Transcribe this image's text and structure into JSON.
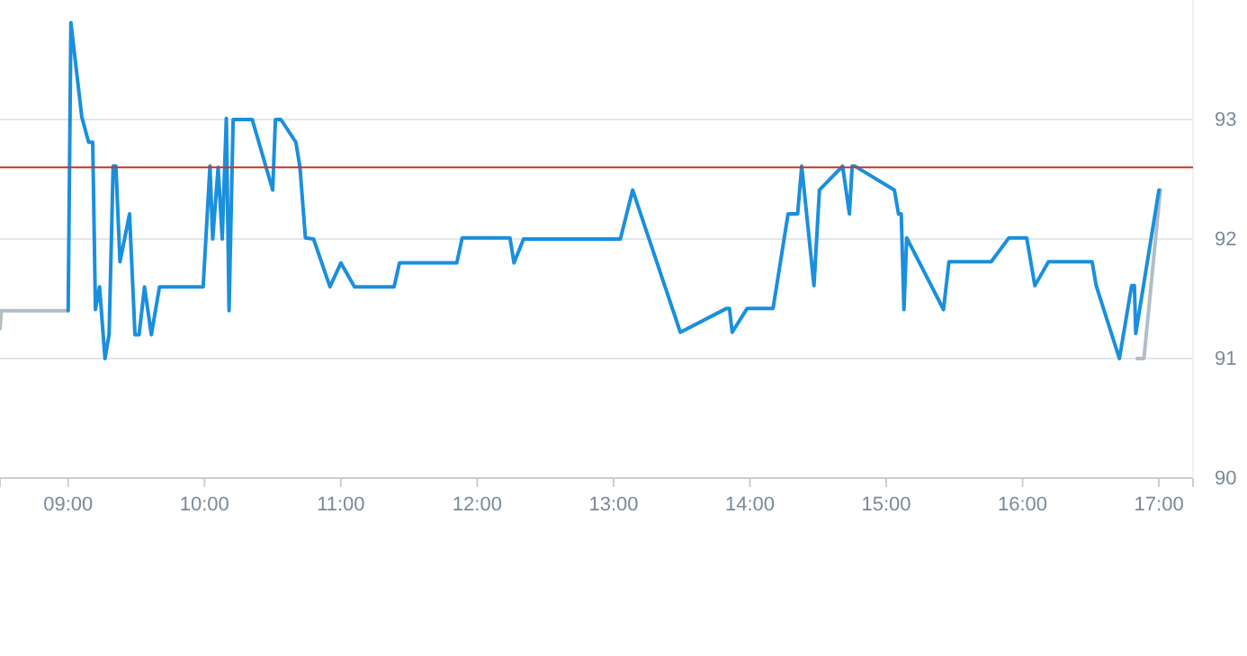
{
  "chart_data": {
    "type": "line",
    "xlim": [
      8.5,
      17.25
    ],
    "ylim": [
      90,
      94
    ],
    "xticks": [
      {
        "value": 9,
        "label": "09:00"
      },
      {
        "value": 10,
        "label": "10:00"
      },
      {
        "value": 11,
        "label": "11:00"
      },
      {
        "value": 12,
        "label": "12:00"
      },
      {
        "value": 13,
        "label": "13:00"
      },
      {
        "value": 14,
        "label": "14:00"
      },
      {
        "value": 15,
        "label": "15:00"
      },
      {
        "value": 16,
        "label": "16:00"
      },
      {
        "value": 17,
        "label": "17:00"
      }
    ],
    "yticks": [
      90,
      91,
      92,
      93
    ],
    "grid": "y",
    "marker": "none",
    "line_style": "solid",
    "ref_lines": [
      {
        "axis": "y",
        "value": 92.6,
        "label": null,
        "color": "#c0392b"
      }
    ],
    "series": [
      {
        "color": "#b0bec5",
        "x": [
          8.5,
          8.51,
          9.0
        ],
        "values": [
          91.25,
          91.4,
          91.4
        ]
      },
      {
        "color": "#b0bec5",
        "x": [
          16.84,
          16.89,
          17.01
        ],
        "values": [
          91.0,
          91.0,
          92.41
        ]
      },
      {
        "color": "#1a8fdd",
        "x": [
          9.0,
          9.02,
          9.1,
          9.15,
          9.18,
          9.2,
          9.23,
          9.27,
          9.3,
          9.33,
          9.35,
          9.38,
          9.45,
          9.49,
          9.52,
          9.56,
          9.61,
          9.67,
          9.99,
          10.04,
          10.06,
          10.1,
          10.13,
          10.16,
          10.18,
          10.21,
          10.35,
          10.5,
          10.52,
          10.56,
          10.67,
          10.7,
          10.74,
          10.8,
          10.92,
          11.0,
          11.1,
          11.39,
          11.43,
          11.85,
          11.89,
          12.24,
          12.27,
          12.34,
          13.05,
          13.14,
          13.49,
          13.83,
          13.85,
          13.87,
          13.98,
          14.17,
          14.28,
          14.35,
          14.38,
          14.47,
          14.51,
          14.68,
          14.73,
          14.75,
          14.77,
          15.06,
          15.09,
          15.11,
          15.13,
          15.15,
          15.42,
          15.46,
          15.77,
          15.9,
          16.03,
          16.09,
          16.19,
          16.51,
          16.54,
          16.71,
          16.8,
          16.82,
          16.83,
          17.0
        ],
        "values": [
          91.4,
          93.81,
          93.02,
          92.81,
          92.81,
          91.41,
          91.6,
          91.0,
          91.2,
          92.61,
          92.61,
          91.81,
          92.21,
          91.2,
          91.2,
          91.6,
          91.2,
          91.6,
          91.6,
          92.61,
          92.0,
          92.6,
          92.0,
          93.01,
          91.4,
          93.0,
          93.0,
          92.41,
          93.0,
          93.0,
          92.81,
          92.6,
          92.01,
          92.0,
          91.6,
          91.8,
          91.6,
          91.6,
          91.8,
          91.8,
          92.01,
          92.01,
          91.8,
          92.0,
          92.0,
          92.41,
          91.22,
          91.42,
          91.42,
          91.22,
          91.42,
          91.42,
          92.21,
          92.21,
          92.61,
          91.61,
          92.41,
          92.61,
          92.21,
          92.61,
          92.61,
          92.41,
          92.21,
          92.21,
          91.41,
          92.01,
          91.41,
          91.81,
          91.81,
          92.01,
          92.01,
          91.61,
          91.81,
          91.81,
          91.61,
          91.0,
          91.61,
          91.61,
          91.21,
          92.41
        ]
      }
    ]
  }
}
